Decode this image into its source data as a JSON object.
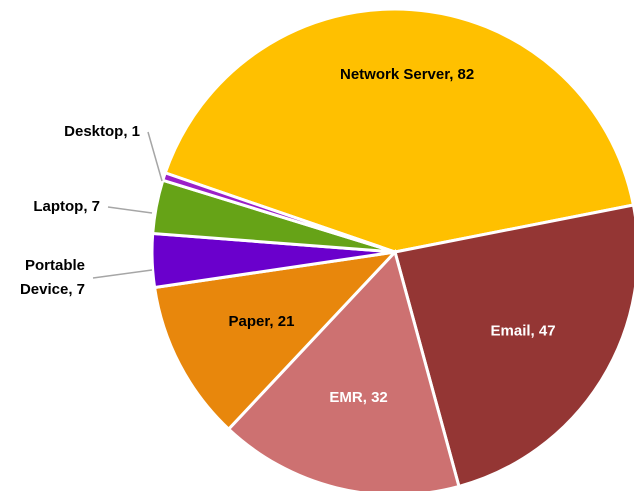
{
  "chart_data": {
    "type": "pie",
    "categories": [
      "Network Server",
      "Email",
      "EMR",
      "Paper",
      "Portable Device",
      "Laptop",
      "Desktop"
    ],
    "values": [
      82,
      47,
      32,
      21,
      7,
      7,
      1
    ],
    "value_labels": [
      "Network Server, 82",
      "Email, 47",
      "EMR, 32",
      "Paper, 21",
      "Portable Device, 7",
      "Laptop, 7",
      "Desktop, 1"
    ],
    "colors": [
      "#ffc000",
      "#943634",
      "#cd7171",
      "#e8870c",
      "#6a00cc",
      "#66a317",
      "#9b20c8"
    ]
  }
}
